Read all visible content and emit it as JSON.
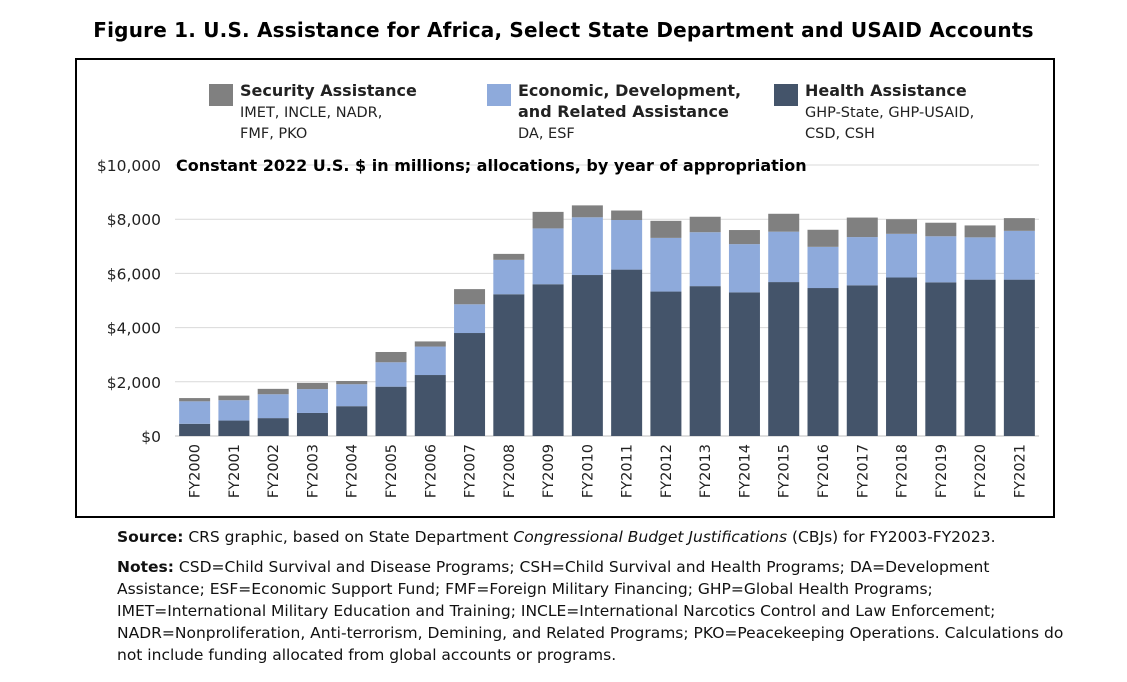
{
  "figure_title": "Figure 1. U.S. Assistance for Africa, Select State Department and USAID Accounts",
  "source": {
    "label": "Source:",
    "text_before": "CRS graphic, based on State Department ",
    "text_italic": "Congressional Budget Justifications",
    "text_after": " (CBJs) for FY2003-FY2023."
  },
  "notes": {
    "label": "Notes:",
    "text": "CSD=Child Survival and Disease Programs; CSH=Child Survival and Health Programs; DA=Development Assistance; ESF=Economic Support Fund; FMF=Foreign Military Financing; GHP=Global Health Programs; IMET=International Military Education and Training; INCLE=International Narcotics Control and Law Enforcement; NADR=Nonproliferation, Anti-terrorism, Demining, and Related Programs; PKO=Peacekeeping Operations. Calculations do not include funding allocated from global accounts or programs."
  },
  "colors": {
    "health": "#44546a",
    "economic": "#8eaadb",
    "security": "#808080",
    "grid": "#d9d9d9"
  },
  "chart_data": {
    "type": "bar",
    "stacked": true,
    "subtitle": "Constant 2022 U.S. $ in millions; allocations, by year of appropriation",
    "ylim": [
      0,
      10000
    ],
    "yticks": [
      0,
      2000,
      4000,
      6000,
      8000,
      10000
    ],
    "ytick_labels": [
      "$0",
      "$2,000",
      "$4,000",
      "$6,000",
      "$8,000",
      "$10,000"
    ],
    "grid": true,
    "categories": [
      "FY2000",
      "FY2001",
      "FY2002",
      "FY2003",
      "FY2004",
      "FY2005",
      "FY2006",
      "FY2007",
      "FY2008",
      "FY2009",
      "FY2010",
      "FY2011",
      "FY2012",
      "FY2013",
      "FY2014",
      "FY2015",
      "FY2016",
      "FY2017",
      "FY2018",
      "FY2019",
      "FY2020",
      "FY2021"
    ],
    "series": [
      {
        "name": "Health Assistance",
        "legend_lines": [
          "Health Assistance",
          "GHP-State, GHP-USAID,",
          "CSD, CSH"
        ],
        "color": "#44546a",
        "values": [
          450,
          570,
          660,
          850,
          1100,
          1820,
          2250,
          3800,
          5230,
          5600,
          5940,
          6140,
          5330,
          5530,
          5300,
          5680,
          5460,
          5560,
          5850,
          5670,
          5770,
          5770
        ]
      },
      {
        "name": "Economic, Development, and Related Assistance",
        "legend_lines": [
          "Economic, Development,",
          "and Related Assistance",
          "DA, ESF"
        ],
        "color": "#8eaadb",
        "values": [
          830,
          750,
          880,
          880,
          810,
          900,
          1050,
          1060,
          1270,
          2060,
          2130,
          1830,
          1980,
          1990,
          1780,
          1860,
          1520,
          1780,
          1610,
          1700,
          1560,
          1800
        ]
      },
      {
        "name": "Security Assistance",
        "legend_lines": [
          "Security Assistance",
          "IMET, INCLE, NADR,",
          "FMF, PKO"
        ],
        "color": "#808080",
        "values": [
          120,
          170,
          200,
          230,
          120,
          380,
          190,
          560,
          220,
          610,
          440,
          350,
          630,
          570,
          520,
          660,
          630,
          720,
          540,
          500,
          440,
          470
        ]
      }
    ]
  }
}
